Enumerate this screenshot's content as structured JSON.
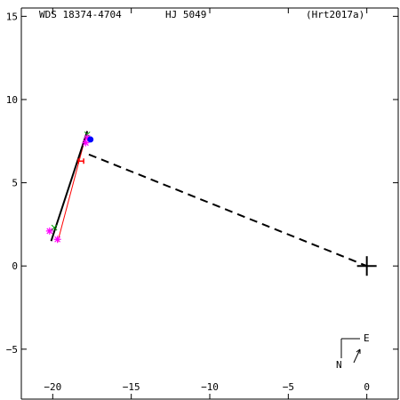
{
  "header": {
    "left": "WDS 18374-4704",
    "center": "HJ 5049",
    "right": "(Hrt2017a)"
  },
  "compass": {
    "north_label": "N",
    "east_label": "E"
  },
  "chart_data": {
    "type": "scatter",
    "xlim": [
      -22,
      2
    ],
    "ylim": [
      -8,
      15.5
    ],
    "x_ticks": [
      -20,
      -15,
      -10,
      -5,
      0
    ],
    "y_ticks": [
      15,
      10,
      5,
      0,
      -5
    ],
    "x_tick_labels": [
      "−20",
      "−15",
      "−10",
      "−5",
      "0"
    ],
    "y_tick_labels": [
      "15",
      "10",
      "5",
      "0",
      "−5"
    ],
    "grid": false,
    "primary": {
      "x": 0,
      "y": 0
    },
    "fit_line": {
      "x1": -20.1,
      "y1": 1.5,
      "x2": -17.8,
      "y2": 8.1,
      "color": "#000000"
    },
    "red_line": {
      "x1": -19.7,
      "y1": 1.4,
      "x2": -17.9,
      "y2": 7.8,
      "color": "#ff0000"
    },
    "primary_link": {
      "x1": -17.7,
      "y1": 6.7,
      "x2": 0,
      "y2": 0,
      "color": "#000000"
    },
    "magenta_stars": [
      {
        "x": -20.2,
        "y": 2.1
      },
      {
        "x": -19.7,
        "y": 1.6
      },
      {
        "x": -17.9,
        "y": 7.4
      },
      {
        "x": -17.8,
        "y": 7.7
      }
    ],
    "green_marks": [
      {
        "x": -19.9,
        "y": 2.3
      },
      {
        "x": -17.8,
        "y": 7.9
      }
    ],
    "blue_point": {
      "x": -17.6,
      "y": 7.6
    },
    "red_markers": [
      {
        "x": -18.2,
        "y": 6.3
      }
    ],
    "colors": {
      "axis": "#000000",
      "magenta": "#ff00ff",
      "green": "#00a000",
      "blue": "#0000ff",
      "red": "#ff0000"
    }
  }
}
